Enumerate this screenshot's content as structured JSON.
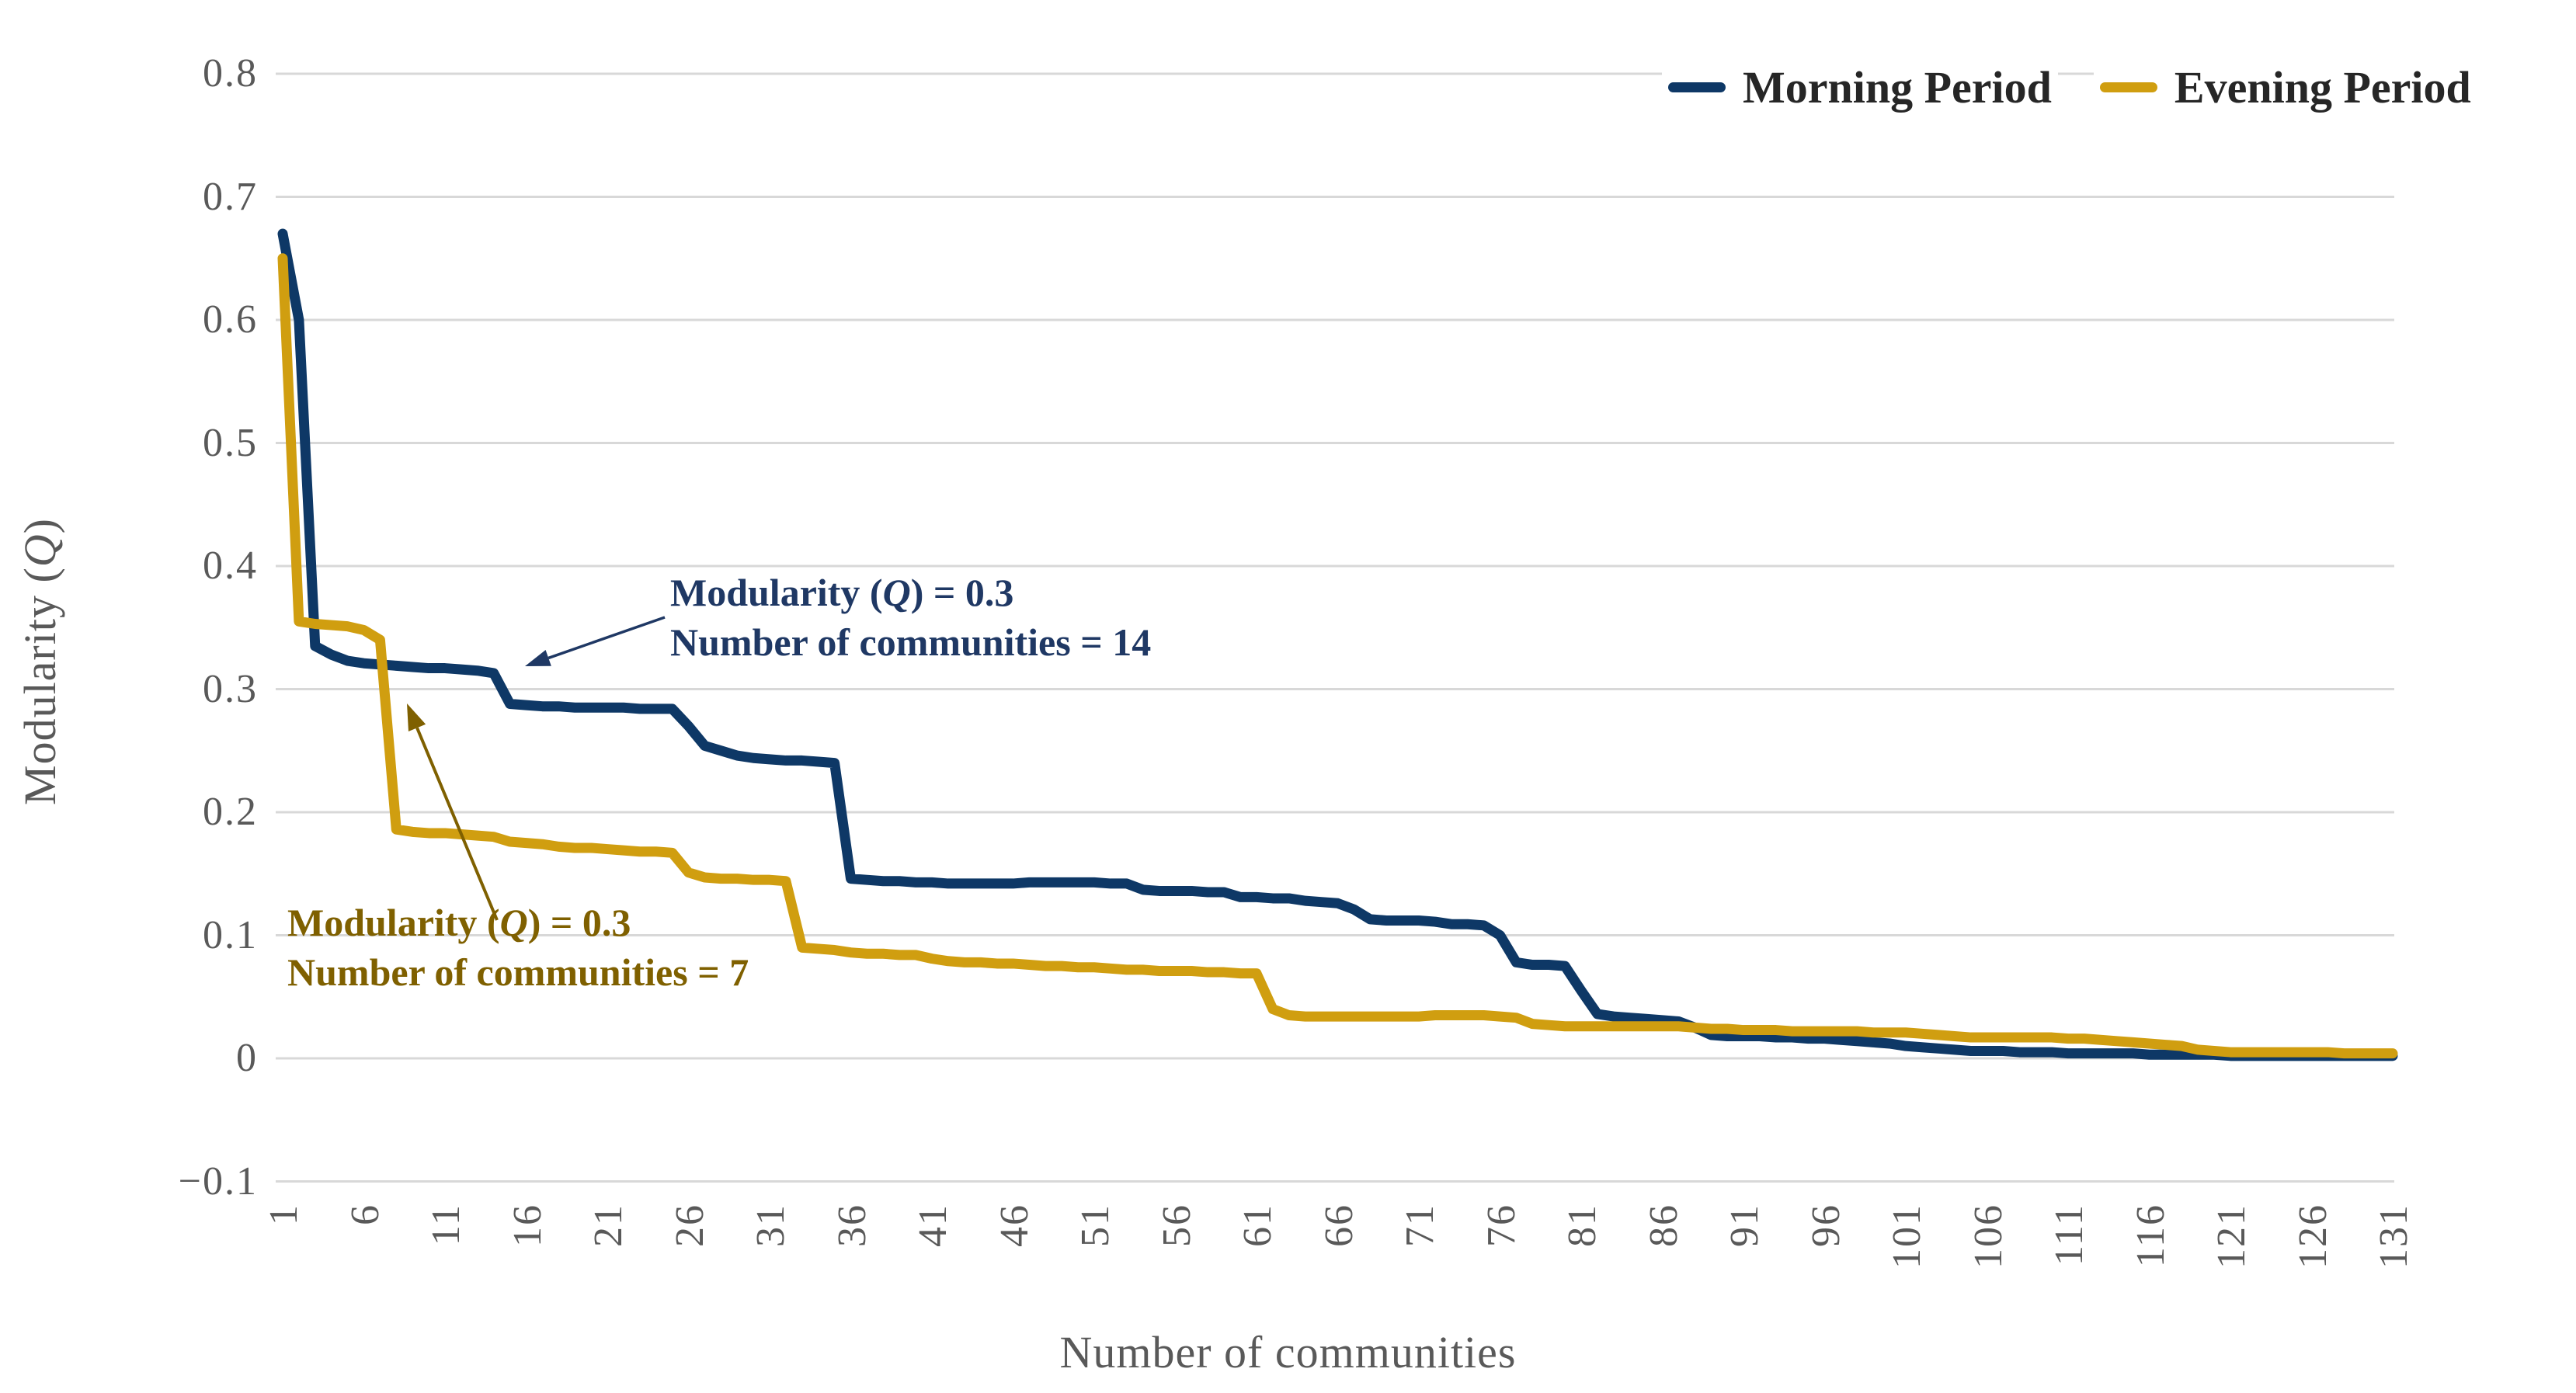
{
  "chart_data": {
    "type": "line",
    "title": "",
    "xlabel": "Number of communities",
    "ylabel": "Modularity (Q)",
    "xlim": [
      1,
      131
    ],
    "ylim": [
      -0.1,
      0.8
    ],
    "grid": true,
    "legend_position": "top-right",
    "x_ticks": [
      "1",
      "6",
      "11",
      "16",
      "21",
      "26",
      "31",
      "36",
      "41",
      "46",
      "51",
      "56",
      "61",
      "66",
      "71",
      "76",
      "81",
      "86",
      "91",
      "96",
      "101",
      "106",
      "111",
      "116",
      "121",
      "126",
      "131"
    ],
    "x_tick_values": [
      1,
      6,
      11,
      16,
      21,
      26,
      31,
      36,
      41,
      46,
      51,
      56,
      61,
      66,
      71,
      76,
      81,
      86,
      91,
      96,
      101,
      106,
      111,
      116,
      121,
      126,
      131
    ],
    "y_ticks": [
      "0.8",
      "0.7",
      "0.6",
      "0.5",
      "0.4",
      "0.3",
      "0.2",
      "0.1",
      "0",
      "−0.1"
    ],
    "y_tick_values": [
      0.8,
      0.7,
      0.6,
      0.5,
      0.4,
      0.3,
      0.2,
      0.1,
      0,
      -0.1
    ],
    "x_start": 1,
    "x_step": 1,
    "grid_color": "#D8D8D8",
    "axis_text_color": "#595959",
    "series": [
      {
        "name": "Morning Period",
        "color": "#0E3866",
        "values": [
          0.67,
          0.6,
          0.335,
          0.328,
          0.323,
          0.321,
          0.32,
          0.319,
          0.318,
          0.317,
          0.317,
          0.316,
          0.315,
          0.313,
          0.288,
          0.287,
          0.286,
          0.286,
          0.285,
          0.285,
          0.285,
          0.285,
          0.284,
          0.284,
          0.284,
          0.27,
          0.254,
          0.25,
          0.246,
          0.244,
          0.243,
          0.242,
          0.242,
          0.241,
          0.24,
          0.146,
          0.145,
          0.144,
          0.144,
          0.143,
          0.143,
          0.142,
          0.142,
          0.142,
          0.142,
          0.142,
          0.143,
          0.143,
          0.143,
          0.143,
          0.143,
          0.142,
          0.142,
          0.137,
          0.136,
          0.136,
          0.136,
          0.135,
          0.135,
          0.131,
          0.131,
          0.13,
          0.13,
          0.128,
          0.127,
          0.126,
          0.121,
          0.113,
          0.112,
          0.112,
          0.112,
          0.111,
          0.109,
          0.109,
          0.108,
          0.1,
          0.078,
          0.076,
          0.076,
          0.075,
          0.055,
          0.036,
          0.034,
          0.033,
          0.032,
          0.031,
          0.03,
          0.025,
          0.019,
          0.018,
          0.018,
          0.018,
          0.017,
          0.017,
          0.016,
          0.016,
          0.015,
          0.014,
          0.013,
          0.012,
          0.01,
          0.009,
          0.008,
          0.007,
          0.006,
          0.006,
          0.006,
          0.005,
          0.005,
          0.005,
          0.004,
          0.004,
          0.004,
          0.004,
          0.004,
          0.003,
          0.003,
          0.003,
          0.003,
          0.003,
          0.002,
          0.002,
          0.002,
          0.002,
          0.002,
          0.002,
          0.002,
          0.002,
          0.002,
          0.002,
          0.002
        ]
      },
      {
        "name": "Evening Period",
        "color": "#D09E10",
        "values": [
          0.65,
          0.355,
          0.353,
          0.352,
          0.351,
          0.348,
          0.34,
          0.186,
          0.184,
          0.183,
          0.183,
          0.182,
          0.181,
          0.18,
          0.176,
          0.175,
          0.174,
          0.172,
          0.171,
          0.171,
          0.17,
          0.169,
          0.168,
          0.168,
          0.167,
          0.151,
          0.147,
          0.146,
          0.146,
          0.145,
          0.145,
          0.144,
          0.09,
          0.089,
          0.088,
          0.086,
          0.085,
          0.085,
          0.084,
          0.084,
          0.081,
          0.079,
          0.078,
          0.078,
          0.077,
          0.077,
          0.076,
          0.075,
          0.075,
          0.074,
          0.074,
          0.073,
          0.072,
          0.072,
          0.071,
          0.071,
          0.071,
          0.07,
          0.07,
          0.069,
          0.069,
          0.04,
          0.035,
          0.034,
          0.034,
          0.034,
          0.034,
          0.034,
          0.034,
          0.034,
          0.034,
          0.035,
          0.035,
          0.035,
          0.035,
          0.034,
          0.033,
          0.028,
          0.027,
          0.026,
          0.026,
          0.026,
          0.026,
          0.026,
          0.026,
          0.026,
          0.026,
          0.025,
          0.024,
          0.024,
          0.023,
          0.023,
          0.023,
          0.022,
          0.022,
          0.022,
          0.022,
          0.022,
          0.021,
          0.021,
          0.021,
          0.02,
          0.019,
          0.018,
          0.017,
          0.017,
          0.017,
          0.017,
          0.017,
          0.017,
          0.016,
          0.016,
          0.015,
          0.014,
          0.013,
          0.012,
          0.011,
          0.01,
          0.007,
          0.006,
          0.005,
          0.005,
          0.005,
          0.005,
          0.005,
          0.005,
          0.005,
          0.004,
          0.004,
          0.004,
          0.004
        ]
      }
    ],
    "annotations": [
      {
        "series": "Morning Period",
        "lines": [
          "Modularity (Q) = 0.3",
          "Number of communities = 14"
        ],
        "color": "#1F3864",
        "points_to": {
          "x": 16,
          "q": 0.315
        }
      },
      {
        "series": "Evening Period",
        "lines": [
          "Modularity (Q) = 0.3",
          "Number of communities = 7"
        ],
        "color": "#7F6000",
        "points_to": {
          "x": 7.5,
          "q": 0.3
        }
      }
    ]
  },
  "legend": {
    "items": [
      {
        "label": "Morning Period",
        "color": "#0E3866"
      },
      {
        "label": "Evening Period",
        "color": "#D09E10"
      }
    ]
  }
}
